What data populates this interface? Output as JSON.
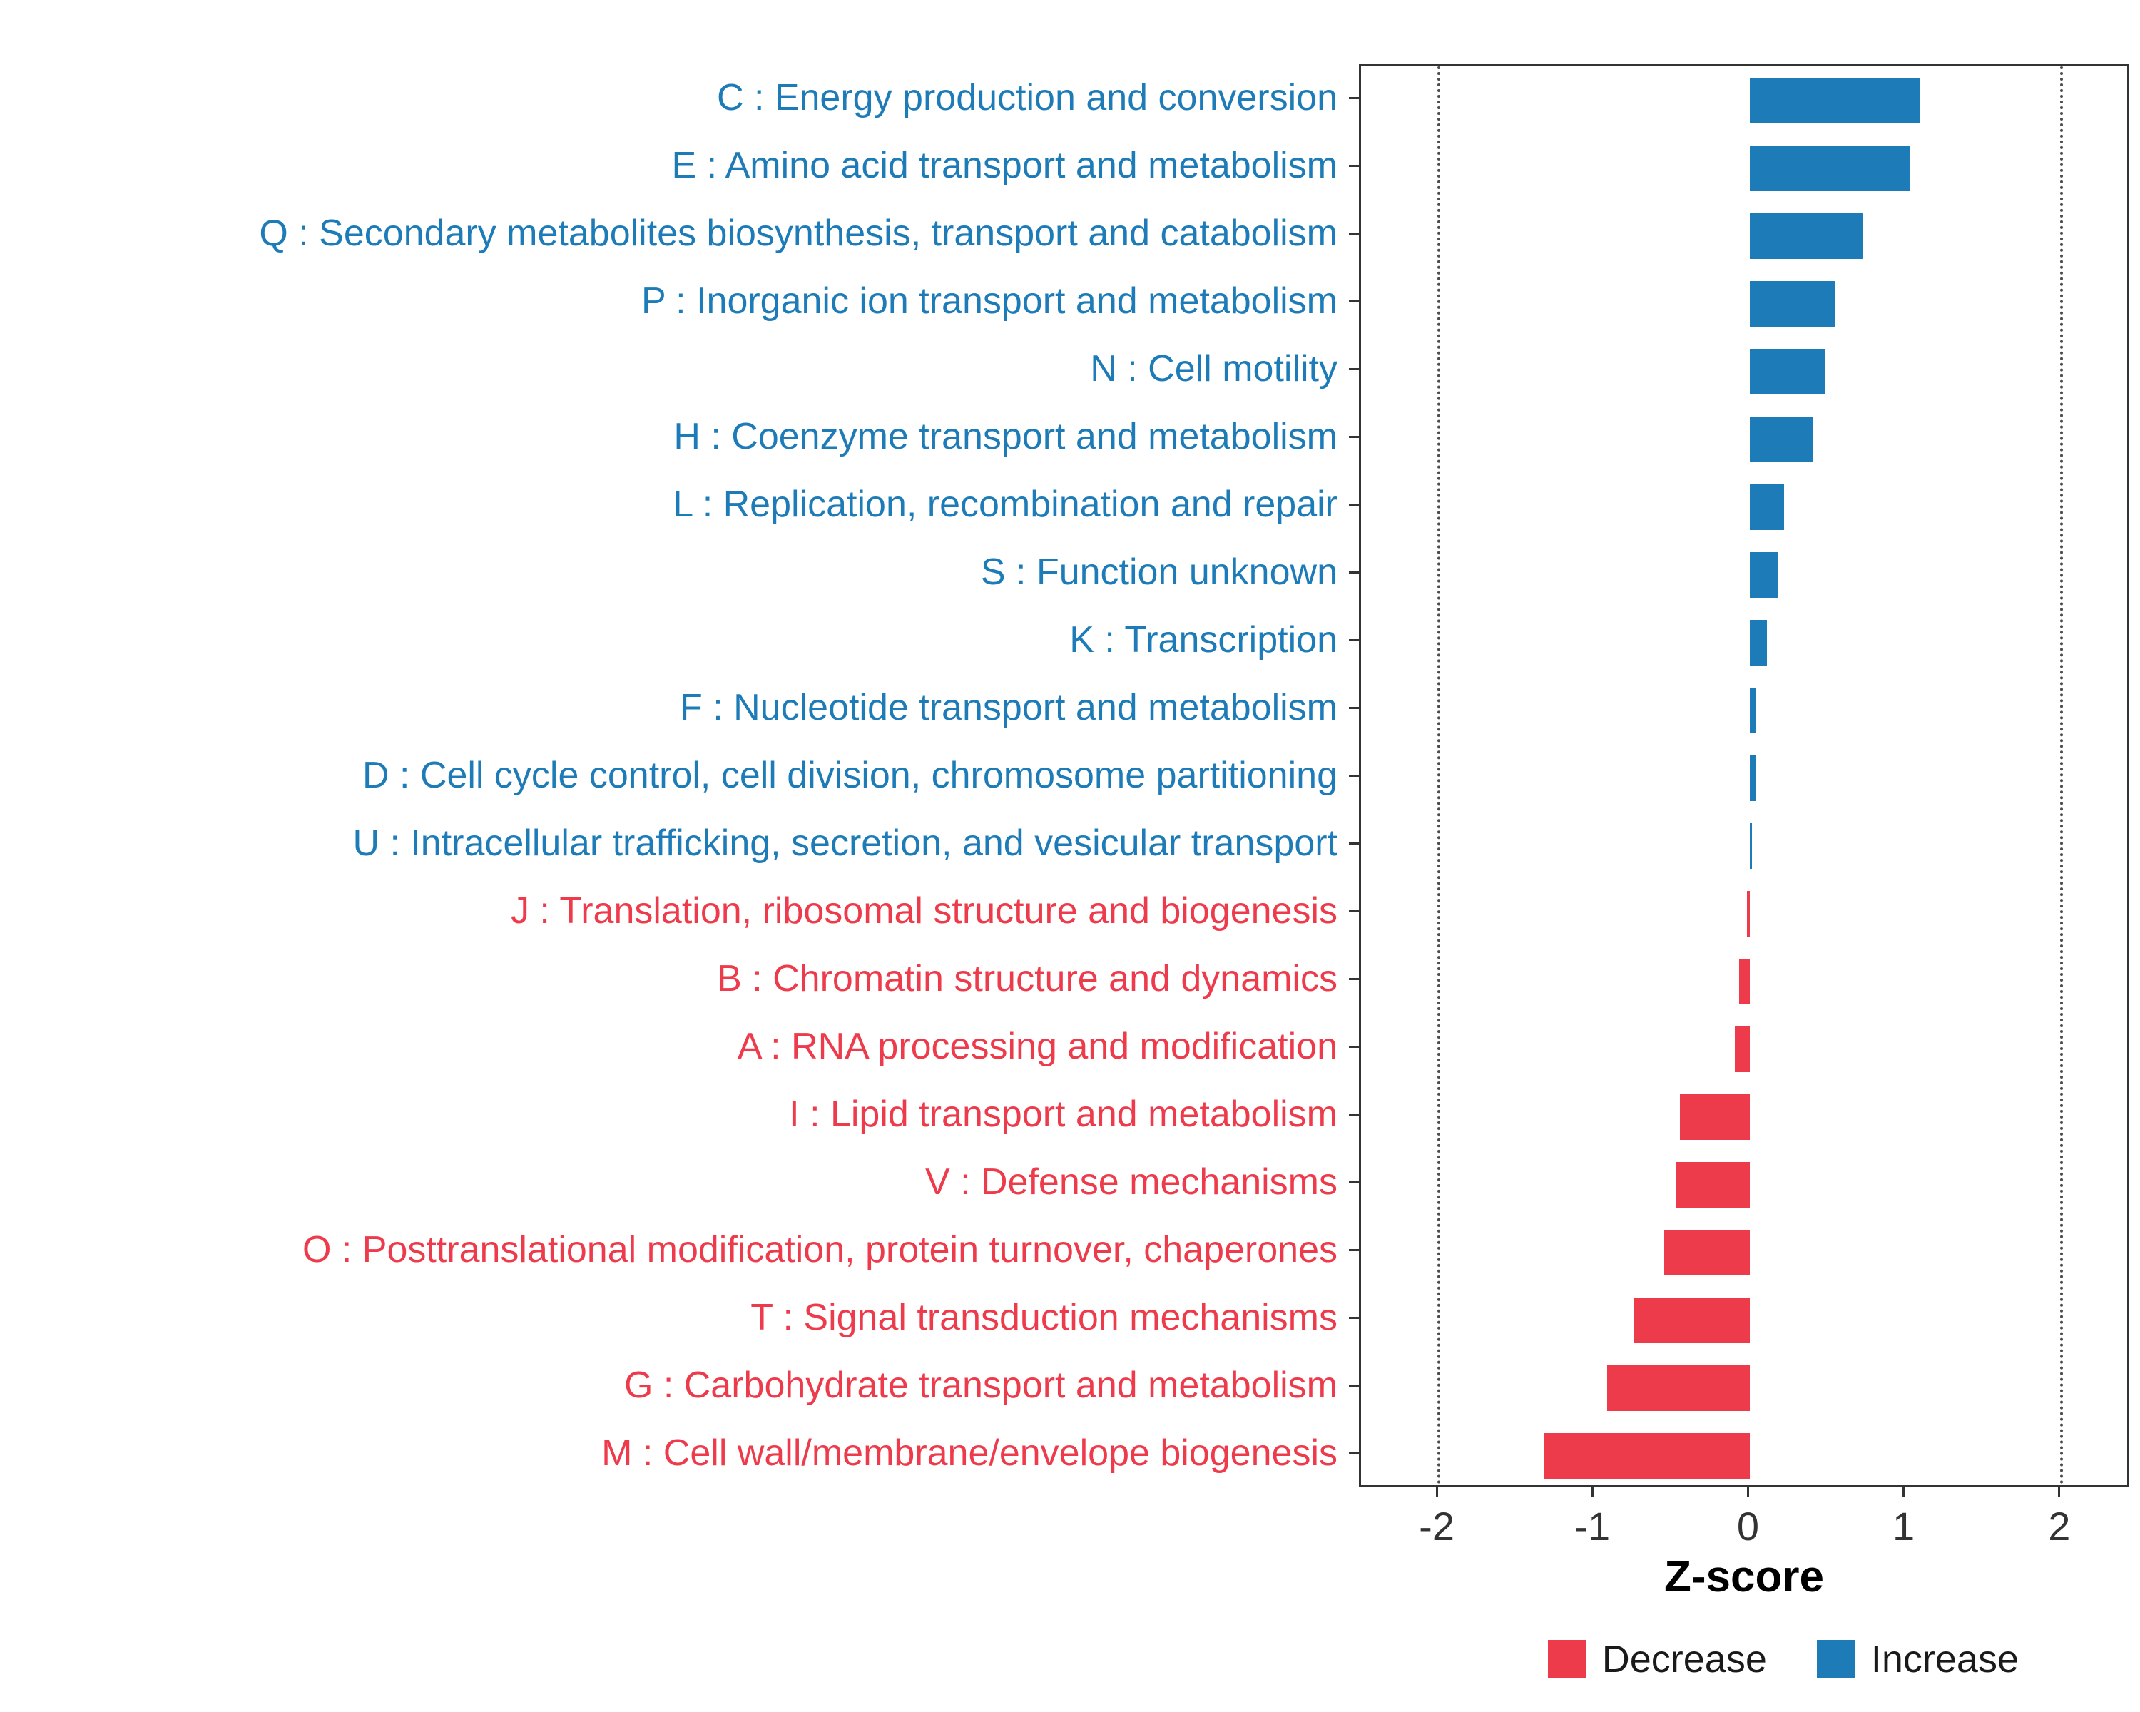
{
  "chart_data": {
    "type": "bar",
    "orientation": "horizontal",
    "title": "",
    "xlabel": "Z-score",
    "xlim": [
      -2.5,
      2.45
    ],
    "xticks": [
      "-2",
      "-1",
      "0",
      "1",
      "2"
    ],
    "xtick_values": [
      -2,
      -1,
      0,
      1,
      2
    ],
    "reference_lines": [
      -2,
      2
    ],
    "grid": "off",
    "legend_position": "bottom-right",
    "colors": {
      "increase": "#1D7CB8",
      "decrease": "#EE3B4B"
    },
    "categories": [
      {
        "label": "C : Energy production and conversion",
        "value": 1.09,
        "direction": "increase"
      },
      {
        "label": "E : Amino acid transport and metabolism",
        "value": 1.03,
        "direction": "increase"
      },
      {
        "label": "Q : Secondary metabolites biosynthesis, transport and catabolism",
        "value": 0.72,
        "direction": "increase"
      },
      {
        "label": "P : Inorganic ion transport and metabolism",
        "value": 0.55,
        "direction": "increase"
      },
      {
        "label": "N : Cell motility",
        "value": 0.48,
        "direction": "increase"
      },
      {
        "label": "H : Coenzyme transport and metabolism",
        "value": 0.4,
        "direction": "increase"
      },
      {
        "label": "L : Replication, recombination and repair",
        "value": 0.22,
        "direction": "increase"
      },
      {
        "label": "S : Function unknown",
        "value": 0.18,
        "direction": "increase"
      },
      {
        "label": "K : Transcription",
        "value": 0.11,
        "direction": "increase"
      },
      {
        "label": "F : Nucleotide transport and metabolism",
        "value": 0.04,
        "direction": "increase"
      },
      {
        "label": "D : Cell cycle control, cell division, chromosome partitioning",
        "value": 0.04,
        "direction": "increase"
      },
      {
        "label": "U : Intracellular trafficking, secretion, and vesicular transport",
        "value": 0.01,
        "direction": "increase"
      },
      {
        "label": "J : Translation, ribosomal structure and biogenesis",
        "value": -0.02,
        "direction": "decrease"
      },
      {
        "label": "B : Chromatin structure and dynamics",
        "value": -0.07,
        "direction": "decrease"
      },
      {
        "label": "A : RNA processing and modification",
        "value": -0.1,
        "direction": "decrease"
      },
      {
        "label": "I : Lipid transport and metabolism",
        "value": -0.45,
        "direction": "decrease"
      },
      {
        "label": "V : Defense mechanisms",
        "value": -0.48,
        "direction": "decrease"
      },
      {
        "label": "O : Posttranslational modification, protein turnover, chaperones",
        "value": -0.55,
        "direction": "decrease"
      },
      {
        "label": "T : Signal transduction mechanisms",
        "value": -0.75,
        "direction": "decrease"
      },
      {
        "label": "G : Carbohydrate transport and metabolism",
        "value": -0.92,
        "direction": "decrease"
      },
      {
        "label": "M : Cell wall/membrane/envelope biogenesis",
        "value": -1.32,
        "direction": "decrease"
      }
    ],
    "legend": [
      {
        "label": "Decrease",
        "key": "decrease"
      },
      {
        "label": "Increase",
        "key": "increase"
      }
    ]
  }
}
